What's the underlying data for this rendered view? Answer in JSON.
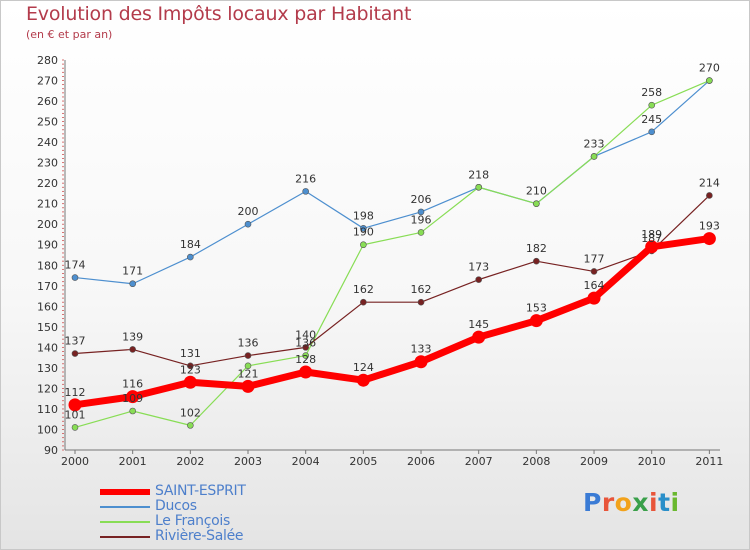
{
  "header": {
    "title": "Evolution des Impôts locaux par Habitant",
    "subtitle": "(en € et par an)"
  },
  "logo": {
    "text": "Proxiti",
    "colors": [
      "#3a7bd5",
      "#e8553a",
      "#f2a21b",
      "#3aa04a",
      "#e8553a",
      "#2a8fc9",
      "#6ab82f"
    ]
  },
  "chart_data": {
    "type": "line",
    "x": [
      "2000",
      "2001",
      "2002",
      "2003",
      "2004",
      "2005",
      "2006",
      "2007",
      "2008",
      "2009",
      "2010",
      "2011"
    ],
    "ylim": [
      90,
      280
    ],
    "yticks": [
      90,
      100,
      110,
      120,
      130,
      140,
      150,
      160,
      170,
      180,
      190,
      200,
      210,
      220,
      230,
      240,
      250,
      260,
      270,
      280
    ],
    "grid": false,
    "legend_position": "bottom-left",
    "series": [
      {
        "name": "SAINT-ESPRIT",
        "color": "#ff0000",
        "values": [
          112,
          116,
          123,
          121,
          128,
          124,
          133,
          145,
          153,
          164,
          189,
          193
        ],
        "labels": [
          "112",
          "116",
          "123",
          "121",
          "128",
          "124",
          "133",
          "145",
          "153",
          "164",
          "189",
          "193"
        ]
      },
      {
        "name": "Ducos",
        "color": "#4d8fcf",
        "values": [
          174,
          171,
          184,
          200,
          216,
          198,
          206,
          218,
          210,
          233,
          245,
          270
        ],
        "labels": [
          "174",
          "171",
          "184",
          "200",
          "216",
          "198",
          "206",
          "",
          "",
          "",
          "245",
          ""
        ]
      },
      {
        "name": "Le François",
        "color": "#88dd55",
        "values": [
          101,
          109,
          102,
          131,
          136,
          190,
          196,
          218,
          210,
          233,
          258,
          270
        ],
        "labels": [
          "101",
          "109",
          "102",
          "",
          "136",
          "190",
          "196",
          "218",
          "210",
          "233",
          "258",
          "270"
        ]
      },
      {
        "name": "Rivière-Salée",
        "color": "#772222",
        "values": [
          137,
          139,
          131,
          136,
          140,
          162,
          162,
          173,
          182,
          177,
          187,
          214
        ],
        "labels": [
          "137",
          "139",
          "131",
          "136",
          "140",
          "162",
          "162",
          "173",
          "182",
          "177",
          "187",
          "214"
        ]
      }
    ]
  }
}
